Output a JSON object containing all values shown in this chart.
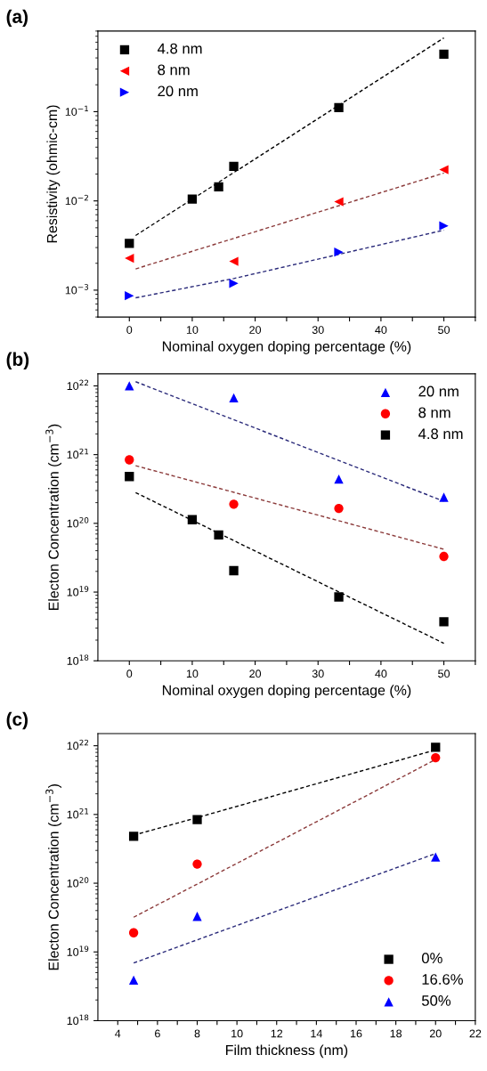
{
  "chart_data": [
    {
      "type": "scatter",
      "annotations": [
        "(a)"
      ],
      "xlabel": "Nominal oxygen doping percentage (%)",
      "ylabel": "Resistivity (ohmic-cm)",
      "log": "y",
      "legend": "top left",
      "xlim": [
        -5,
        55
      ],
      "xticks": [
        0,
        {
          "value": 5,
          "label": null
        },
        10,
        {
          "value": 15,
          "label": null
        },
        20,
        {
          "value": 25,
          "label": null
        },
        30,
        {
          "value": 35,
          "label": null
        },
        40,
        {
          "value": 45,
          "label": null
        },
        50,
        {
          "value": 55,
          "label": null
        }
      ],
      "ylim": [
        0.0005,
        0.8
      ],
      "yticks": [
        {
          "value": 0.001,
          "label": "10$^{−3}$"
        },
        {
          "value": 0.01,
          "label": "10$^{−2}$"
        },
        {
          "value": 0.1,
          "label": "10$^{−1}$"
        }
      ],
      "series": [
        {
          "name": "4.8 nm",
          "color": "#000000",
          "marker": "square",
          "x": [
            0,
            10,
            14.2,
            16.6,
            33.3,
            50
          ],
          "values": [
            0.00335,
            0.0105,
            0.0144,
            0.0244,
            0.111,
            0.44
          ]
        },
        {
          "name": "8 nm",
          "color": "#ff0000",
          "marker": "triangle-left",
          "x": [
            0,
            16.6,
            33.3,
            50
          ],
          "values": [
            0.00228,
            0.0021,
            0.0098,
            0.0224
          ]
        },
        {
          "name": "20 nm",
          "color": "#0000ff",
          "marker": "triangle-right",
          "x": [
            0,
            16.6,
            33.3,
            50
          ],
          "values": [
            0.000865,
            0.00119,
            0.00267,
            0.00525
          ]
        },
        {
          "type": "line",
          "color": "#000000",
          "line_style": "dashed",
          "x": [
            1,
            50
          ],
          "values": [
            0.0041,
            0.67
          ]
        },
        {
          "type": "line",
          "color": "#8b3a3a",
          "line_style": "dashed",
          "x": [
            1,
            50
          ],
          "values": [
            0.00173,
            0.0205
          ]
        },
        {
          "type": "line",
          "color": "#2a2a7a",
          "line_style": "dashed",
          "x": [
            1,
            16.6,
            50
          ],
          "values": [
            0.00082,
            0.00135,
            0.0047
          ]
        }
      ]
    },
    {
      "type": "scatter",
      "annotations": [
        "(b)"
      ],
      "xlabel": "Nominal oxygen doping percentage (%)",
      "ylabel": "Electon Concentration (cm$^{−3}$)",
      "log": "y",
      "legend": "top right",
      "xlim": [
        -5,
        55
      ],
      "xticks": [
        0,
        {
          "value": 5,
          "label": null
        },
        10,
        {
          "value": 15,
          "label": null
        },
        20,
        {
          "value": 25,
          "label": null
        },
        30,
        {
          "value": 35,
          "label": null
        },
        40,
        {
          "value": 45,
          "label": null
        },
        50,
        {
          "value": 55,
          "label": null
        }
      ],
      "ylim": [
        1e+18,
        1.5e+22
      ],
      "yticks": [
        {
          "value": 1e+18,
          "label": "10$^{18}$"
        },
        {
          "value": 1e+19,
          "label": "10$^{19}$"
        },
        {
          "value": 1e+20,
          "label": "10$^{20}$"
        },
        {
          "value": 1e+21,
          "label": "10$^{21}$"
        },
        {
          "value": 1e+22,
          "label": "10$^{22}$"
        }
      ],
      "series": [
        {
          "name": "20 nm",
          "color": "#0000ff",
          "marker": "triangle",
          "x": [
            0,
            16.6,
            33.3,
            50
          ],
          "values": [
            1e+22,
            6.7e+21,
            4.4e+20,
            2.4e+20
          ]
        },
        {
          "name": "8 nm",
          "color": "#ff0000",
          "marker": "circle",
          "x": [
            0,
            16.6,
            33.3,
            50
          ],
          "values": [
            8.4e+20,
            1.9e+20,
            1.65e+20,
            3.3e+19
          ]
        },
        {
          "name": "4.8 nm",
          "color": "#000000",
          "marker": "square",
          "x": [
            0,
            10,
            14.2,
            16.6,
            33.3,
            50
          ],
          "values": [
            4.8e+20,
            1.13e+20,
            6.8e+19,
            2.05e+19,
            8.5e+18,
            3.7e+18
          ]
        },
        {
          "type": "line",
          "color": "#2a2a7a",
          "line_style": "dashed",
          "x": [
            1,
            50
          ],
          "values": [
            1.15e+22,
            2.1e+20
          ]
        },
        {
          "type": "line",
          "color": "#8b3a3a",
          "line_style": "dashed",
          "x": [
            1,
            50
          ],
          "values": [
            6.9e+20,
            4.2e+19
          ]
        },
        {
          "type": "line",
          "color": "#000000",
          "line_style": "dashed",
          "x": [
            1,
            50
          ],
          "values": [
            2.8e+20,
            1.8e+18
          ]
        }
      ]
    },
    {
      "type": "scatter",
      "annotations": [
        "(c)"
      ],
      "xlabel": "Film thickness (nm)",
      "ylabel": "Electon Concentration (cm$^{−3}$)",
      "log": "y",
      "legend": "bottom right",
      "xlim": [
        3,
        22
      ],
      "xticks": [
        4,
        {
          "value": 5,
          "label": null
        },
        6,
        {
          "value": 7,
          "label": null
        },
        8,
        {
          "value": 9,
          "label": null
        },
        10,
        {
          "value": 11,
          "label": null
        },
        12,
        {
          "value": 13,
          "label": null
        },
        14,
        {
          "value": 15,
          "label": null
        },
        16,
        {
          "value": 17,
          "label": null
        },
        18,
        {
          "value": 19,
          "label": null
        },
        20,
        {
          "value": 21,
          "label": null
        },
        22
      ],
      "ylim": [
        1e+18,
        1.5e+22
      ],
      "yticks": [
        {
          "value": 1e+18,
          "label": "10$^{18}$"
        },
        {
          "value": 1e+19,
          "label": "10$^{19}$"
        },
        {
          "value": 1e+20,
          "label": "10$^{20}$"
        },
        {
          "value": 1e+21,
          "label": "10$^{21}$"
        },
        {
          "value": 1e+22,
          "label": "10$^{22}$"
        }
      ],
      "series": [
        {
          "name": "0%",
          "color": "#000000",
          "marker": "square",
          "x": [
            4.8,
            8,
            20
          ],
          "values": [
            4.8e+20,
            8.4e+20,
            9.5e+21
          ]
        },
        {
          "name": "16.6%",
          "color": "#ff0000",
          "marker": "circle",
          "x": [
            4.8,
            8,
            20
          ],
          "values": [
            1.9e+19,
            1.9e+20,
            6.7e+21
          ]
        },
        {
          "name": "50%",
          "color": "#0000ff",
          "marker": "triangle",
          "x": [
            4.8,
            8,
            20
          ],
          "values": [
            3.9e+18,
            3.3e+19,
            2.4e+20
          ]
        },
        {
          "type": "line",
          "color": "#000000",
          "line_style": "dashed",
          "x": [
            4.8,
            8,
            20
          ],
          "values": [
            5e+20,
            9e+20,
            8.7e+21
          ]
        },
        {
          "type": "line",
          "color": "#8b3a3a",
          "line_style": "dashed",
          "x": [
            4.8,
            8,
            20
          ],
          "values": [
            3.2e+19,
            9.7e+19,
            6.3e+21
          ]
        },
        {
          "type": "line",
          "color": "#2a2a7a",
          "line_style": "dashed",
          "x": [
            4.8,
            8,
            20
          ],
          "values": [
            6.9e+18,
            1.5e+19,
            2.7e+20
          ]
        }
      ]
    }
  ]
}
